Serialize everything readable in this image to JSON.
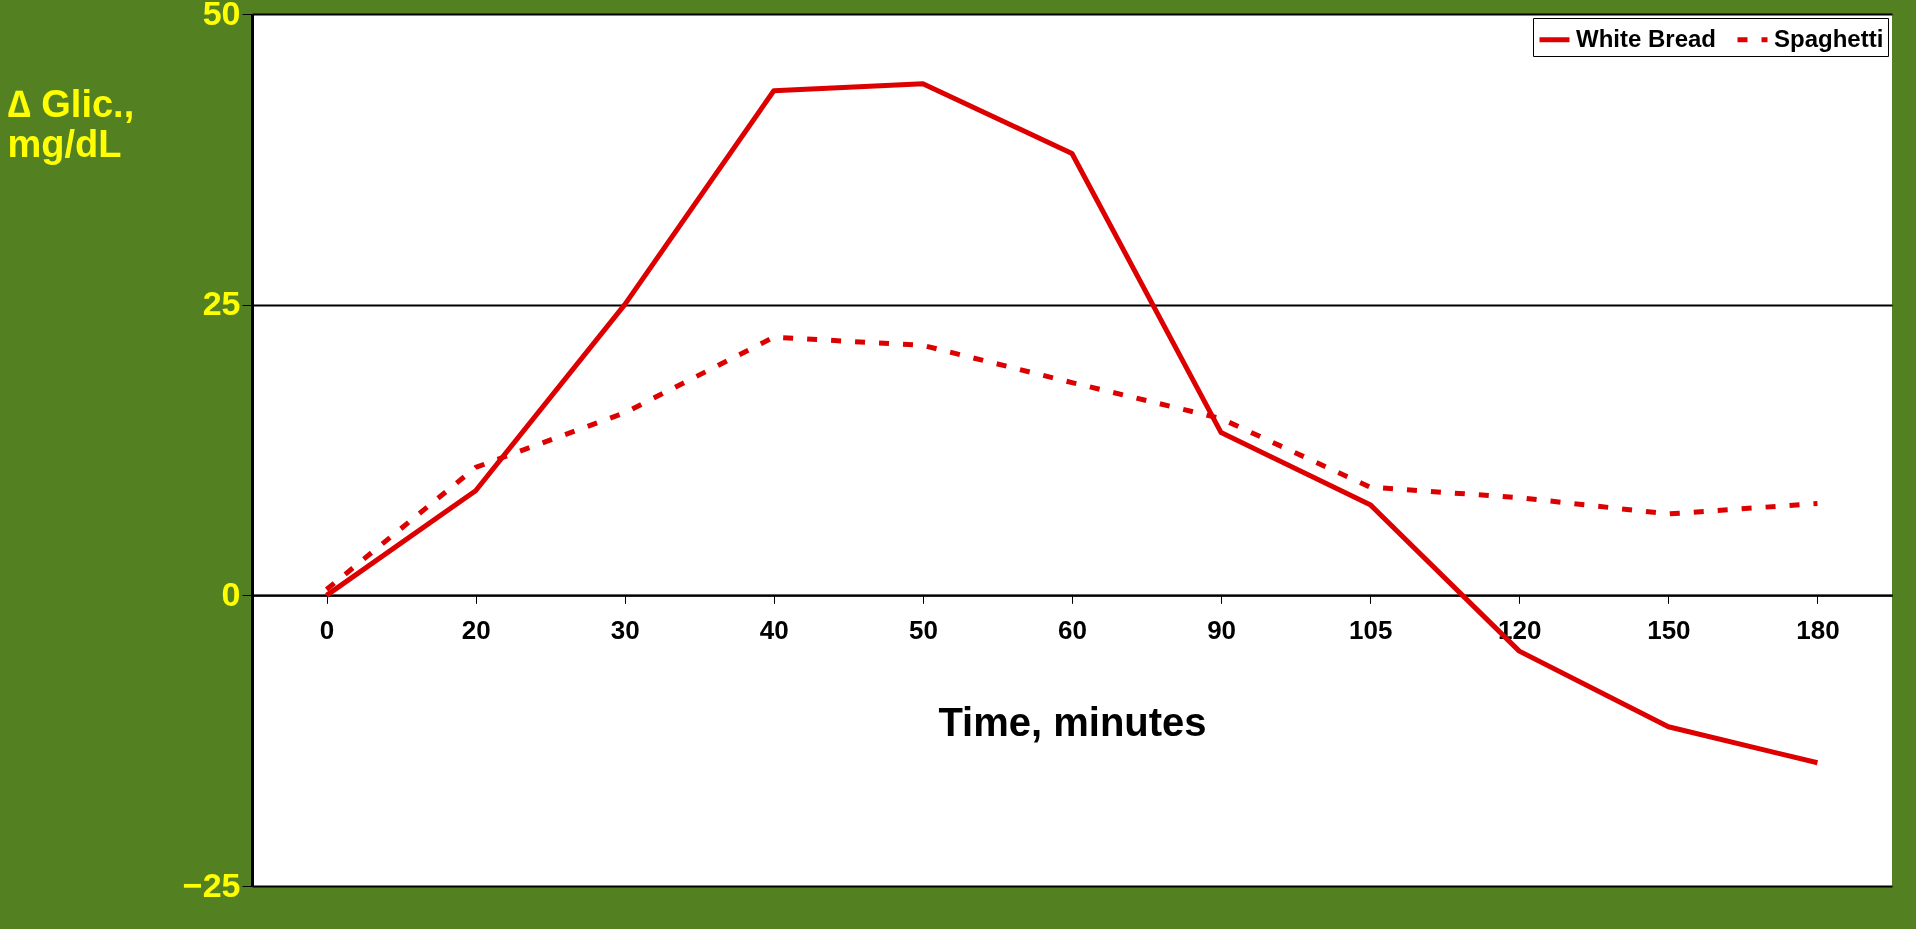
{
  "chart_data": {
    "type": "line",
    "ylabel": "∆ Glic., mg/dL",
    "xlabel": "Time, minutes",
    "categories": [
      "0",
      "20",
      "30",
      "40",
      "50",
      "60",
      "90",
      "105",
      "120",
      "150",
      "180"
    ],
    "series": [
      {
        "name": "White Bread",
        "color": "#dd0000",
        "line_style": "solid",
        "values": [
          0,
          9,
          25,
          43.4,
          44,
          38,
          14,
          7.8,
          -4.8,
          -11.3,
          -14.4
        ]
      },
      {
        "name": "Spaghetti",
        "color": "#dd0000",
        "line_style": "dashed",
        "values": [
          0.5,
          11,
          15.7,
          22.2,
          21.5,
          18.3,
          15.2,
          9.3,
          8.4,
          7,
          7.9
        ]
      }
    ],
    "ylim": [
      -25,
      50
    ],
    "yticks": [
      -25,
      0,
      25,
      50
    ],
    "grid": "y",
    "legend": "top right",
    "marker": "none"
  }
}
